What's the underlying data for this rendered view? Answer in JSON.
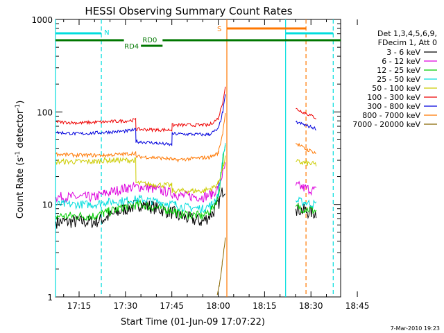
{
  "chart_data": {
    "type": "line",
    "title": "HESSI Observing Summary Count Rates",
    "xlabel": "Start Time (01-Jun-09 17:07:22)",
    "ylabel_prefix": "Count Rate (s",
    "ylabel_mid": " detector",
    "ylabel_suffix": ")",
    "ylabel_sup": "-1",
    "yscale": "log",
    "xlim_min": [
      7.37,
      99.6
    ],
    "ylim": [
      1,
      1000
    ],
    "x_ticks": [
      {
        "m": 15,
        "label": "17:15"
      },
      {
        "m": 30,
        "label": "17:30"
      },
      {
        "m": 45,
        "label": "17:45"
      },
      {
        "m": 60,
        "label": "18:00"
      },
      {
        "m": 75,
        "label": "18:15"
      },
      {
        "m": 90,
        "label": "18:30"
      },
      {
        "m": 105,
        "label": "18:45"
      }
    ],
    "y_ticks": [
      {
        "v": 1,
        "label": "1"
      },
      {
        "v": 10,
        "label": "10"
      },
      {
        "v": 100,
        "label": "100"
      },
      {
        "v": 1000,
        "label": "1000"
      }
    ],
    "legend_header": [
      "Det 1,3,4,5,6,9,",
      "FDecim 1, Att 0"
    ],
    "series": [
      {
        "name": "3 - 6 keV",
        "color": "#000000",
        "x": [
          7.5,
          20,
          23,
          30,
          35,
          38,
          46,
          47,
          55,
          58,
          60,
          61.5,
          62.3,
          84.8,
          85.1,
          88,
          91.7
        ],
        "y": [
          6.5,
          6.5,
          7,
          9,
          10,
          9.5,
          8,
          7.5,
          6.5,
          8,
          10,
          14,
          15,
          null,
          9,
          8.5,
          8
        ]
      },
      {
        "name": "6 - 12 keV",
        "color": "#dd00dd",
        "x": [
          7.5,
          20,
          23,
          30,
          35,
          38,
          46,
          47,
          55,
          58,
          60,
          61.5,
          62.3,
          84.8,
          85.1,
          88,
          91.7
        ],
        "y": [
          12,
          12,
          13,
          15,
          15.5,
          15,
          13,
          12.5,
          12,
          13,
          15,
          22,
          26,
          null,
          16,
          15,
          14
        ]
      },
      {
        "name": "12 - 25 keV",
        "color": "#00cc00",
        "x": [
          7.5,
          20,
          23,
          30,
          35,
          38,
          46,
          47,
          55,
          58,
          60,
          61.5,
          62.3,
          84.8,
          85.1,
          88,
          91.7
        ],
        "y": [
          7.5,
          7.5,
          8,
          9.5,
          10,
          9.5,
          8.5,
          8,
          7.5,
          9,
          12,
          30,
          40,
          null,
          9.5,
          9,
          8.5
        ]
      },
      {
        "name": "25 - 50 keV",
        "color": "#00dddd",
        "x": [
          7.5,
          20,
          23,
          30,
          35,
          38,
          46,
          47,
          55,
          58,
          60,
          61.5,
          62.3,
          84.8,
          85.1,
          88,
          91.7
        ],
        "y": [
          10,
          10,
          10.5,
          11,
          11.5,
          11,
          10,
          9.5,
          9,
          10,
          13,
          32,
          45,
          null,
          11,
          10.5,
          10
        ]
      },
      {
        "name": "50 - 100 keV",
        "color": "#cccc00",
        "x": [
          7.5,
          20,
          23,
          30,
          33.3,
          33.4,
          38,
          45,
          45.1,
          55,
          58,
          60,
          61.5,
          62.3,
          84.8,
          85.1,
          88,
          91.7
        ],
        "y": [
          29,
          29,
          30,
          30,
          30,
          17,
          16.5,
          16,
          14,
          14,
          15,
          17,
          25,
          32,
          null,
          29,
          28,
          27
        ]
      },
      {
        "name": "100 - 300 keV",
        "color": "#ee0000",
        "x": [
          7.5,
          15,
          23,
          30,
          33.3,
          33.4,
          40,
          45,
          45.1,
          55,
          57,
          60,
          61.5,
          62.3,
          84.8,
          85.1,
          88,
          91.7
        ],
        "y": [
          78,
          76,
          78,
          80,
          82,
          65,
          64,
          64,
          72,
          72,
          72,
          85,
          130,
          185,
          null,
          108,
          98,
          86
        ]
      },
      {
        "name": "300 - 800 keV",
        "color": "#0000dd",
        "x": [
          7.5,
          15,
          23,
          30,
          33.3,
          33.4,
          40,
          45,
          45.1,
          55,
          57,
          60,
          61.5,
          62.3,
          84.8,
          85.1,
          88,
          91.7
        ],
        "y": [
          60,
          58,
          60,
          62,
          64,
          48,
          46,
          44,
          58,
          57,
          57,
          65,
          100,
          150,
          null,
          78,
          72,
          66
        ]
      },
      {
        "name": "800 - 7000 keV",
        "color": "#ff7700",
        "x": [
          7.5,
          15,
          23,
          30,
          33.3,
          33.4,
          40,
          45,
          45.1,
          55,
          57,
          60,
          61.5,
          62.3,
          84.8,
          85.1,
          88,
          91.7
        ],
        "y": [
          35,
          34,
          34,
          35,
          36,
          33,
          32,
          31,
          30,
          32,
          32,
          36,
          60,
          100,
          null,
          46,
          40,
          36
        ]
      },
      {
        "name": "7000 - 20000 keV",
        "color": "#886600",
        "x": [
          59.7,
          60.3,
          60.8,
          61.3,
          61.8,
          62.3
        ],
        "y": [
          1.05,
          1.3,
          1.7,
          2.3,
          3.1,
          4.2
        ]
      }
    ],
    "annotations": {
      "markers": [
        {
          "label": "N",
          "color": "#00dddd",
          "x_start": 7.37,
          "x_end": 22.2
        },
        {
          "label": "S",
          "color": "#ff7700",
          "x_start": 62.8,
          "x_end": 88.4
        }
      ],
      "rd_bars": [
        {
          "label": "RD0",
          "color": "#007700",
          "x_start": 7.37,
          "x_end": 99.6
        },
        {
          "label": "RD4",
          "color": "#007700",
          "x_start": 35.0,
          "x_end": 42.0
        }
      ],
      "vlines": [
        {
          "x": 7.37,
          "color": "#00dddd",
          "dashed": false
        },
        {
          "x": 22.2,
          "color": "#00dddd",
          "dashed": true
        },
        {
          "x": 62.8,
          "color": "#ff7700",
          "dashed": false
        },
        {
          "x": 81.8,
          "color": "#00dddd",
          "dashed": false
        },
        {
          "x": 88.4,
          "color": "#ff7700",
          "dashed": true
        },
        {
          "x": 97.2,
          "color": "#00dddd",
          "dashed": true
        }
      ]
    }
  },
  "footer": {
    "date": "7-Mar-2010 19:23"
  }
}
